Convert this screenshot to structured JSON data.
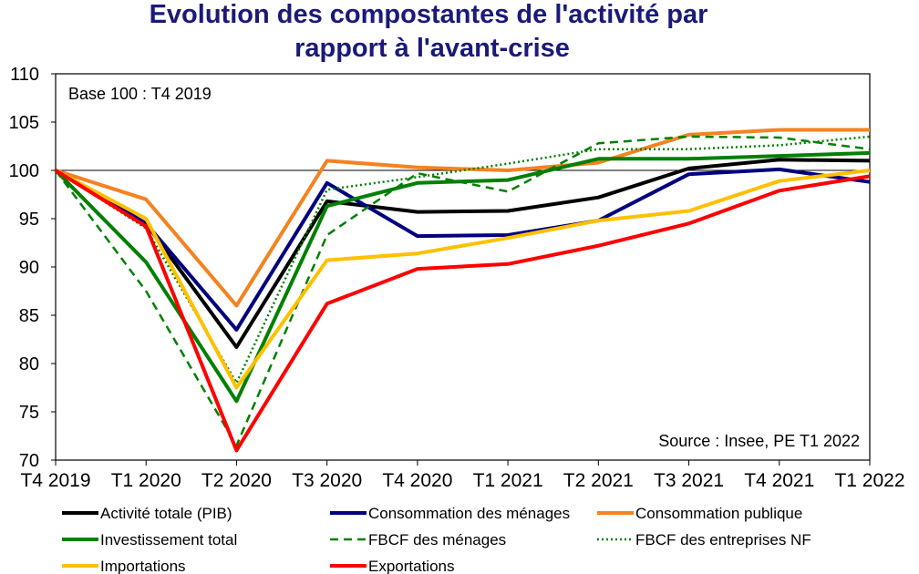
{
  "chart_data": {
    "type": "line",
    "title": "Evolution des compostantes de l'activité par rapport à l'avant-crise",
    "title_lines": [
      "Evolution des compostantes de l'activité par",
      "rapport à l'avant-crise"
    ],
    "base_note": "Base 100 : T4 2019",
    "source_note": "Source : Insee, PE T1 2022",
    "xlabel": "",
    "ylabel": "",
    "categories": [
      "T4 2019",
      "T1 2020",
      "T2 2020",
      "T3 2020",
      "T4 2020",
      "T1 2021",
      "T2 2021",
      "T3 2021",
      "T4 2021",
      "T1 2022"
    ],
    "ylim": [
      70,
      110
    ],
    "yticks": [
      70,
      75,
      80,
      85,
      90,
      95,
      100,
      105,
      110
    ],
    "reference_line": 100,
    "grid": false,
    "legend_position": "bottom",
    "series": [
      {
        "name": "Activité totale (PIB)",
        "color": "#000000",
        "style": "solid",
        "values": [
          100,
          94.5,
          81.7,
          96.8,
          95.7,
          95.8,
          97.2,
          100.2,
          101.1,
          101
        ]
      },
      {
        "name": "Consommation des ménages",
        "color": "#00007f",
        "style": "solid",
        "values": [
          100,
          94.5,
          83.5,
          98.7,
          93.2,
          93.3,
          94.8,
          99.6,
          100.1,
          98.8
        ]
      },
      {
        "name": "Consommation publique",
        "color": "#f58220",
        "style": "solid",
        "values": [
          100,
          97,
          86,
          101,
          100.3,
          100,
          100.8,
          103.7,
          104.2,
          104.2
        ]
      },
      {
        "name": "Investissement total",
        "color": "#008000",
        "style": "solid",
        "values": [
          100,
          90.5,
          76.1,
          96.3,
          98.7,
          99,
          101.2,
          101.2,
          101.5,
          101.8
        ]
      },
      {
        "name": "FBCF des ménages",
        "color": "#008000",
        "style": "dashed",
        "values": [
          100,
          87.5,
          71.5,
          93.3,
          99.7,
          97.8,
          102.8,
          103.5,
          103.4,
          102.2
        ]
      },
      {
        "name": "FBCF des entreprises NF",
        "color": "#008000",
        "style": "dotted",
        "values": [
          100,
          94,
          78,
          98,
          99.3,
          100.7,
          102.2,
          102.2,
          102.6,
          103.5
        ]
      },
      {
        "name": "Importations",
        "color": "#ffc000",
        "style": "solid",
        "values": [
          100,
          95,
          77.5,
          90.7,
          91.4,
          93,
          94.8,
          95.8,
          98.9,
          100
        ]
      },
      {
        "name": "Exportations",
        "color": "#ff0000",
        "style": "solid",
        "values": [
          100,
          94.2,
          71,
          86.2,
          89.8,
          90.3,
          92.2,
          94.5,
          97.9,
          99.4
        ]
      }
    ]
  }
}
